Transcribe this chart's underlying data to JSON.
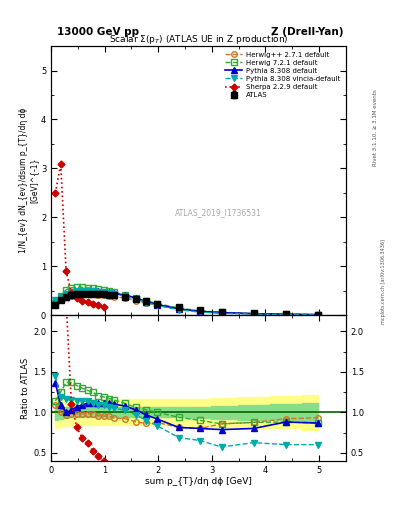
{
  "title_top_left": "13000 GeV pp",
  "title_top_right": "Z (Drell-Yan)",
  "plot_title": "Scalar Σ(p_{T}) (ATLAS UE in Z production)",
  "xlabel": "sum p_{T}/dη dϕ [GeV]",
  "ylabel_main": "1/N_{ev} dN_{ev}/dsum p_{T}/dη dϕ  [GeV]^{-1}",
  "ylabel_ratio": "Ratio to ATLAS",
  "watermark": "ATLAS_2019_I1736531",
  "rivet_label": "Rivet 3.1.10, ≥ 3.1M events",
  "arxiv_label": "mcplots.cern.ch [arXiv:1306.3436]",
  "xlim": [
    0,
    5.5
  ],
  "ylim_main": [
    0,
    5.5
  ],
  "ylim_ratio": [
    0.4,
    2.2
  ],
  "atlas_x": [
    0.08,
    0.18,
    0.28,
    0.38,
    0.48,
    0.58,
    0.68,
    0.78,
    0.88,
    0.98,
    1.08,
    1.18,
    1.38,
    1.58,
    1.78,
    1.98,
    2.38,
    2.78,
    3.18,
    3.78,
    4.38,
    4.98
  ],
  "atlas_y": [
    0.22,
    0.32,
    0.38,
    0.41,
    0.43,
    0.44,
    0.44,
    0.44,
    0.44,
    0.43,
    0.42,
    0.41,
    0.38,
    0.34,
    0.29,
    0.24,
    0.16,
    0.1,
    0.07,
    0.04,
    0.025,
    0.015
  ],
  "atlas_yerr": [
    0.01,
    0.01,
    0.01,
    0.01,
    0.01,
    0.01,
    0.01,
    0.01,
    0.01,
    0.01,
    0.01,
    0.01,
    0.01,
    0.01,
    0.01,
    0.01,
    0.01,
    0.005,
    0.005,
    0.003,
    0.002,
    0.002
  ],
  "herwig271_x": [
    0.08,
    0.18,
    0.28,
    0.38,
    0.48,
    0.58,
    0.68,
    0.78,
    0.88,
    0.98,
    1.08,
    1.18,
    1.38,
    1.58,
    1.78,
    1.98,
    2.38,
    2.78,
    3.18,
    3.78,
    4.38,
    4.98
  ],
  "herwig271_y": [
    0.24,
    0.32,
    0.37,
    0.4,
    0.42,
    0.43,
    0.43,
    0.43,
    0.42,
    0.41,
    0.4,
    0.38,
    0.35,
    0.3,
    0.25,
    0.21,
    0.13,
    0.08,
    0.06,
    0.035,
    0.023,
    0.014
  ],
  "herwig271_color": "#cc7722",
  "herwig721_x": [
    0.08,
    0.18,
    0.28,
    0.38,
    0.48,
    0.58,
    0.68,
    0.78,
    0.88,
    0.98,
    1.08,
    1.18,
    1.38,
    1.58,
    1.78,
    1.98,
    2.38,
    2.78,
    3.18,
    3.78,
    4.38,
    4.98
  ],
  "herwig721_y": [
    0.25,
    0.4,
    0.52,
    0.56,
    0.57,
    0.57,
    0.56,
    0.55,
    0.53,
    0.51,
    0.49,
    0.47,
    0.42,
    0.36,
    0.3,
    0.24,
    0.15,
    0.09,
    0.06,
    0.035,
    0.022,
    0.013
  ],
  "herwig721_color": "#33aa33",
  "pythia8308_x": [
    0.08,
    0.18,
    0.28,
    0.38,
    0.48,
    0.58,
    0.68,
    0.78,
    0.88,
    0.98,
    1.08,
    1.18,
    1.38,
    1.58,
    1.78,
    1.98,
    2.38,
    2.78,
    3.18,
    3.78,
    4.38,
    4.98
  ],
  "pythia8308_y": [
    0.3,
    0.35,
    0.38,
    0.42,
    0.46,
    0.48,
    0.49,
    0.49,
    0.49,
    0.48,
    0.47,
    0.45,
    0.41,
    0.35,
    0.28,
    0.22,
    0.13,
    0.08,
    0.055,
    0.032,
    0.022,
    0.013
  ],
  "pythia8308_color": "#0000cc",
  "pythia8308v_x": [
    0.08,
    0.18,
    0.28,
    0.38,
    0.48,
    0.58,
    0.68,
    0.78,
    0.88,
    0.98,
    1.08,
    1.18,
    1.38,
    1.58,
    1.78,
    1.98,
    2.38,
    2.78,
    3.18,
    3.78,
    4.38,
    4.98
  ],
  "pythia8308v_y": [
    0.32,
    0.38,
    0.44,
    0.47,
    0.49,
    0.5,
    0.5,
    0.49,
    0.48,
    0.47,
    0.45,
    0.43,
    0.39,
    0.33,
    0.26,
    0.2,
    0.11,
    0.065,
    0.04,
    0.025,
    0.015,
    0.009
  ],
  "pythia8308v_color": "#00aaaa",
  "sherpa229_x": [
    0.08,
    0.18,
    0.28,
    0.38,
    0.48,
    0.58,
    0.68,
    0.78,
    0.88,
    0.98
  ],
  "sherpa229_y": [
    2.5,
    3.1,
    0.9,
    0.45,
    0.35,
    0.3,
    0.27,
    0.23,
    0.2,
    0.17
  ],
  "sherpa229_color": "#cc0000",
  "ratio_herwig271_y": [
    1.09,
    1.0,
    0.97,
    0.98,
    0.98,
    0.98,
    0.98,
    0.98,
    0.955,
    0.953,
    0.952,
    0.927,
    0.921,
    0.882,
    0.862,
    0.875,
    0.813,
    0.8,
    0.857,
    0.875,
    0.92,
    0.933
  ],
  "ratio_herwig721_y": [
    1.14,
    1.25,
    1.37,
    1.37,
    1.33,
    1.3,
    1.27,
    1.25,
    1.2,
    1.19,
    1.17,
    1.15,
    1.11,
    1.06,
    1.03,
    1.0,
    0.938,
    0.9,
    0.857,
    0.875,
    0.88,
    0.867
  ],
  "ratio_pythia8308_y": [
    1.36,
    1.09,
    1.0,
    1.024,
    1.07,
    1.09,
    1.114,
    1.114,
    1.114,
    1.116,
    1.119,
    1.098,
    1.079,
    1.029,
    0.966,
    0.917,
    0.813,
    0.8,
    0.786,
    0.8,
    0.88,
    0.867
  ],
  "ratio_pythia8308v_y": [
    1.45,
    1.19,
    1.16,
    1.15,
    1.14,
    1.136,
    1.136,
    1.114,
    1.091,
    1.093,
    1.071,
    1.049,
    1.026,
    0.971,
    0.897,
    0.833,
    0.688,
    0.65,
    0.571,
    0.625,
    0.6,
    0.6
  ],
  "ratio_sherpa229_y": [
    11.4,
    9.69,
    2.37,
    1.1,
    0.814,
    0.682,
    0.614,
    0.523,
    0.455,
    0.395
  ],
  "band_x": [
    0.08,
    0.18,
    0.28,
    0.38,
    0.48,
    0.58,
    0.68,
    0.78,
    0.88,
    0.98,
    1.08,
    1.18,
    1.38,
    1.58,
    1.78,
    1.98,
    2.38,
    2.78,
    3.18,
    3.78,
    4.38,
    4.98
  ],
  "band_green_lo": [
    0.9,
    0.92,
    0.93,
    0.94,
    0.94,
    0.94,
    0.94,
    0.94,
    0.94,
    0.94,
    0.94,
    0.94,
    0.94,
    0.94,
    0.94,
    0.94,
    0.94,
    0.93,
    0.92,
    0.91,
    0.9,
    0.88
  ],
  "band_green_hi": [
    1.1,
    1.08,
    1.07,
    1.06,
    1.06,
    1.06,
    1.06,
    1.06,
    1.06,
    1.06,
    1.06,
    1.06,
    1.06,
    1.06,
    1.06,
    1.06,
    1.06,
    1.07,
    1.08,
    1.09,
    1.1,
    1.12
  ],
  "band_yellow_lo": [
    0.8,
    0.82,
    0.83,
    0.84,
    0.84,
    0.84,
    0.84,
    0.84,
    0.84,
    0.84,
    0.84,
    0.84,
    0.84,
    0.84,
    0.84,
    0.84,
    0.84,
    0.83,
    0.82,
    0.81,
    0.8,
    0.78
  ],
  "band_yellow_hi": [
    1.2,
    1.18,
    1.17,
    1.16,
    1.16,
    1.16,
    1.16,
    1.16,
    1.16,
    1.16,
    1.16,
    1.16,
    1.16,
    1.16,
    1.16,
    1.16,
    1.16,
    1.17,
    1.18,
    1.19,
    1.2,
    1.22
  ]
}
